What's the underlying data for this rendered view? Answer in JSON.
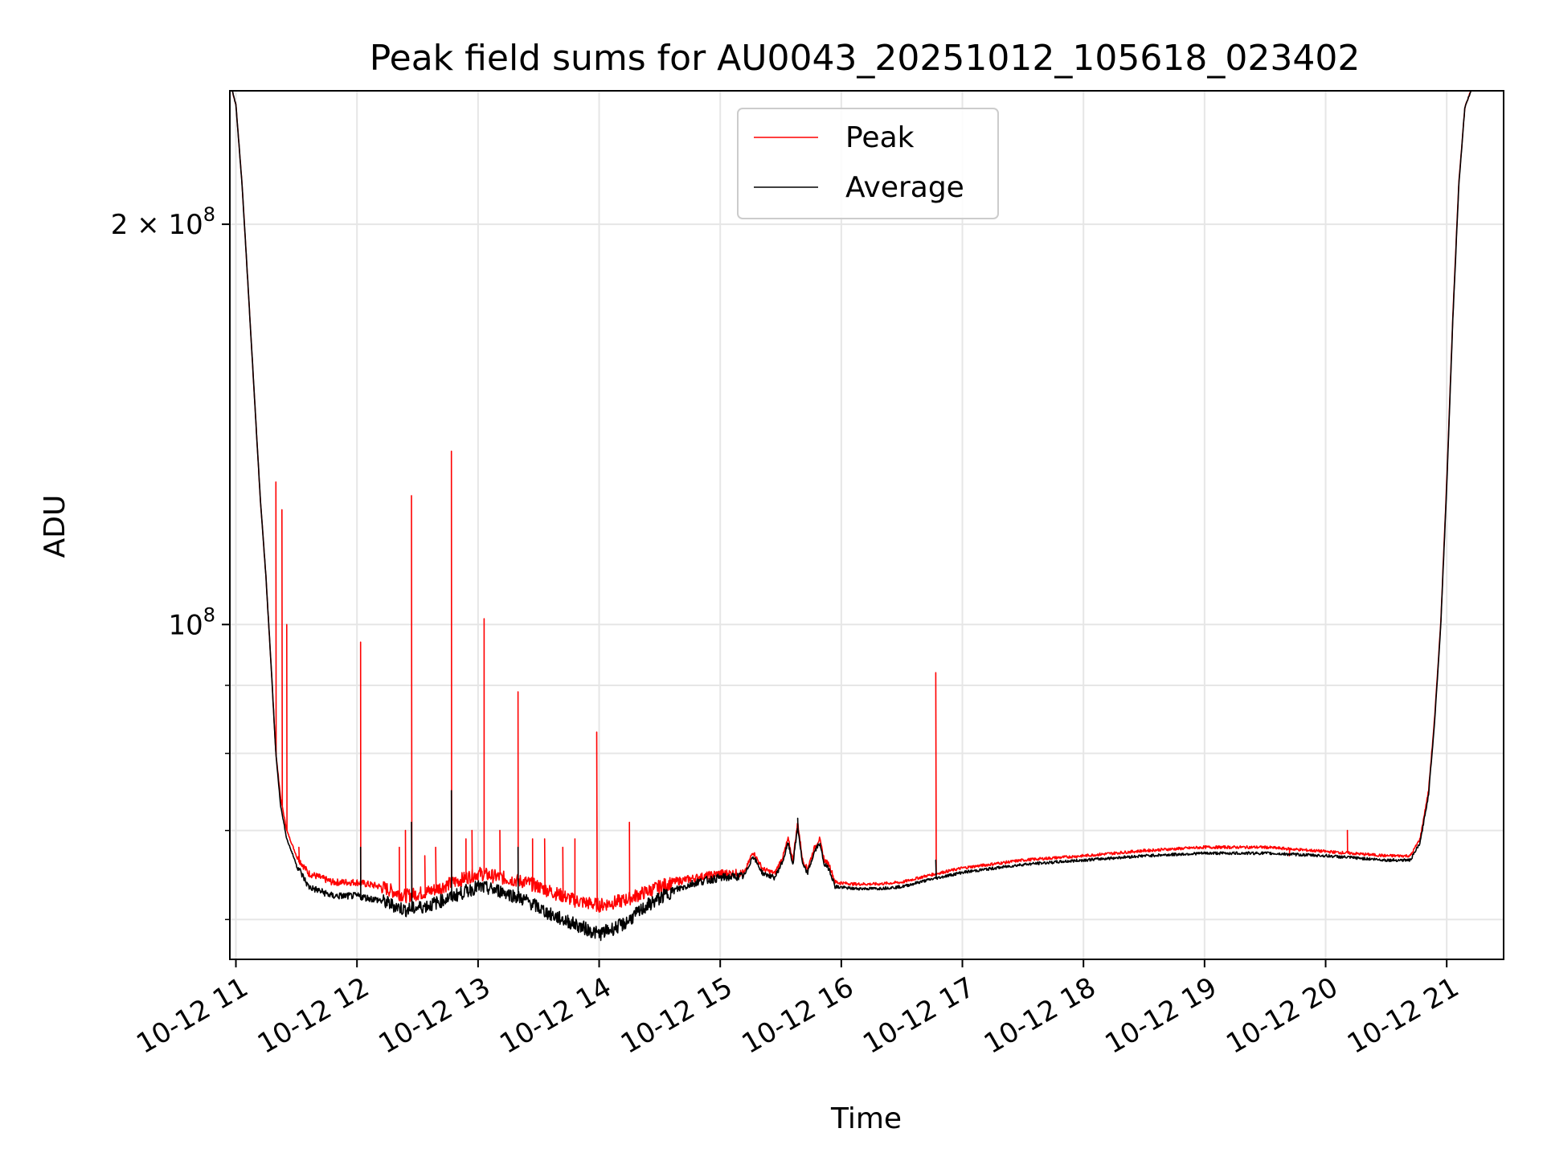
{
  "chart_data": {
    "type": "line",
    "title": "Peak field sums for AU0043_20251012_105618_023402",
    "xlabel": "Time",
    "ylabel": "ADU",
    "yscale": "log",
    "ylim": [
      56000000,
      252000000
    ],
    "xlim_hours": [
      10.95,
      21.47
    ],
    "grid": true,
    "legend_loc": "upper center",
    "x_ticks": [
      {
        "hour": 11,
        "label": "10-12 11"
      },
      {
        "hour": 12,
        "label": "10-12 12"
      },
      {
        "hour": 13,
        "label": "10-12 13"
      },
      {
        "hour": 14,
        "label": "10-12 14"
      },
      {
        "hour": 15,
        "label": "10-12 15"
      },
      {
        "hour": 16,
        "label": "10-12 16"
      },
      {
        "hour": 17,
        "label": "10-12 17"
      },
      {
        "hour": 18,
        "label": "10-12 18"
      },
      {
        "hour": 19,
        "label": "10-12 19"
      },
      {
        "hour": 20,
        "label": "10-12 20"
      },
      {
        "hour": 21,
        "label": "10-12 21"
      }
    ],
    "y_major_ticks": [
      {
        "value": 100000000,
        "mant": "10",
        "exp": "8"
      },
      {
        "value": 200000000,
        "mant": "2 × 10",
        "exp": "8"
      }
    ],
    "y_minor_ticks": [
      60000000,
      70000000,
      80000000,
      90000000
    ],
    "series": [
      {
        "name": "Peak",
        "color": "#ff0000",
        "points": [
          [
            10.97,
            252000000
          ],
          [
            11.0,
            246000000
          ],
          [
            11.05,
            215000000
          ],
          [
            11.1,
            180000000
          ],
          [
            11.15,
            150000000
          ],
          [
            11.2,
            125000000
          ],
          [
            11.25,
            108000000
          ],
          [
            11.3,
            90000000
          ],
          [
            11.33,
            80000000
          ],
          [
            11.37,
            74000000
          ],
          [
            11.42,
            70000000
          ],
          [
            11.5,
            67000000
          ],
          [
            11.6,
            65000000
          ],
          [
            11.8,
            64000000
          ],
          [
            12.0,
            64000000
          ],
          [
            12.2,
            63500000
          ],
          [
            12.4,
            62500000
          ],
          [
            12.6,
            63000000
          ],
          [
            12.8,
            64000000
          ],
          [
            13.0,
            65000000
          ],
          [
            13.2,
            64500000
          ],
          [
            13.4,
            64000000
          ],
          [
            13.6,
            63000000
          ],
          [
            13.8,
            62000000
          ],
          [
            14.0,
            61500000
          ],
          [
            14.2,
            62000000
          ],
          [
            14.4,
            63000000
          ],
          [
            14.6,
            64000000
          ],
          [
            14.8,
            64500000
          ],
          [
            15.0,
            65000000
          ],
          [
            15.2,
            65000000
          ],
          [
            15.27,
            67500000
          ],
          [
            15.35,
            65500000
          ],
          [
            15.45,
            65000000
          ],
          [
            15.52,
            67000000
          ],
          [
            15.56,
            69000000
          ],
          [
            15.6,
            66500000
          ],
          [
            15.64,
            71000000
          ],
          [
            15.68,
            66500000
          ],
          [
            15.72,
            65500000
          ],
          [
            15.78,
            68000000
          ],
          [
            15.82,
            69000000
          ],
          [
            15.86,
            66500000
          ],
          [
            15.9,
            66000000
          ],
          [
            15.95,
            64000000
          ],
          [
            16.1,
            63800000
          ],
          [
            16.3,
            63800000
          ],
          [
            16.5,
            64000000
          ],
          [
            16.7,
            64700000
          ],
          [
            17.0,
            65600000
          ],
          [
            17.5,
            66500000
          ],
          [
            18.0,
            67000000
          ],
          [
            18.5,
            67600000
          ],
          [
            19.0,
            68000000
          ],
          [
            19.5,
            68000000
          ],
          [
            20.0,
            67500000
          ],
          [
            20.5,
            67000000
          ],
          [
            20.7,
            67000000
          ],
          [
            20.78,
            69000000
          ],
          [
            20.85,
            75000000
          ],
          [
            20.9,
            85000000
          ],
          [
            20.95,
            100000000
          ],
          [
            21.0,
            128000000
          ],
          [
            21.05,
            170000000
          ],
          [
            21.1,
            215000000
          ],
          [
            21.15,
            245000000
          ],
          [
            21.2,
            252000000
          ]
        ],
        "spikes": [
          [
            11.33,
            128000000
          ],
          [
            11.38,
            122000000
          ],
          [
            11.42,
            100000000
          ],
          [
            11.52,
            68000000
          ],
          [
            12.03,
            97000000
          ],
          [
            12.35,
            68000000
          ],
          [
            12.4,
            70000000
          ],
          [
            12.45,
            125000000
          ],
          [
            12.56,
            67000000
          ],
          [
            12.65,
            68000000
          ],
          [
            12.78,
            135000000
          ],
          [
            12.9,
            69000000
          ],
          [
            12.95,
            70000000
          ],
          [
            13.05,
            101000000
          ],
          [
            13.18,
            70000000
          ],
          [
            13.33,
            89000000
          ],
          [
            13.45,
            69000000
          ],
          [
            13.55,
            69000000
          ],
          [
            13.7,
            68000000
          ],
          [
            13.8,
            69000000
          ],
          [
            13.98,
            83000000
          ],
          [
            14.25,
            71000000
          ],
          [
            16.78,
            92000000
          ],
          [
            18.55,
            67500000
          ],
          [
            19.7,
            67000000
          ],
          [
            20.18,
            70000000
          ]
        ]
      },
      {
        "name": "Average",
        "color": "#000000",
        "points": [
          [
            10.97,
            252000000
          ],
          [
            11.0,
            246000000
          ],
          [
            11.05,
            215000000
          ],
          [
            11.1,
            180000000
          ],
          [
            11.15,
            150000000
          ],
          [
            11.2,
            125000000
          ],
          [
            11.25,
            108000000
          ],
          [
            11.3,
            90000000
          ],
          [
            11.33,
            80000000
          ],
          [
            11.37,
            73000000
          ],
          [
            11.42,
            69000000
          ],
          [
            11.5,
            66000000
          ],
          [
            11.6,
            63500000
          ],
          [
            11.8,
            62500000
          ],
          [
            12.0,
            62500000
          ],
          [
            12.2,
            62000000
          ],
          [
            12.4,
            61000000
          ],
          [
            12.6,
            61500000
          ],
          [
            12.8,
            62500000
          ],
          [
            13.0,
            63500000
          ],
          [
            13.2,
            63000000
          ],
          [
            13.4,
            62000000
          ],
          [
            13.6,
            60500000
          ],
          [
            13.8,
            59500000
          ],
          [
            14.0,
            58500000
          ],
          [
            14.2,
            59500000
          ],
          [
            14.4,
            61500000
          ],
          [
            14.6,
            63000000
          ],
          [
            14.8,
            64000000
          ],
          [
            15.0,
            64500000
          ],
          [
            15.2,
            64700000
          ],
          [
            15.27,
            67000000
          ],
          [
            15.35,
            65000000
          ],
          [
            15.45,
            64500000
          ],
          [
            15.52,
            66500000
          ],
          [
            15.56,
            68500000
          ],
          [
            15.6,
            66000000
          ],
          [
            15.64,
            70500000
          ],
          [
            15.68,
            66000000
          ],
          [
            15.72,
            65000000
          ],
          [
            15.78,
            67500000
          ],
          [
            15.82,
            68500000
          ],
          [
            15.86,
            66000000
          ],
          [
            15.9,
            65500000
          ],
          [
            15.95,
            63500000
          ],
          [
            16.1,
            63300000
          ],
          [
            16.3,
            63300000
          ],
          [
            16.5,
            63500000
          ],
          [
            16.7,
            64200000
          ],
          [
            17.0,
            65100000
          ],
          [
            17.5,
            66000000
          ],
          [
            18.0,
            66500000
          ],
          [
            18.5,
            67000000
          ],
          [
            19.0,
            67300000
          ],
          [
            19.5,
            67300000
          ],
          [
            20.0,
            67000000
          ],
          [
            20.5,
            66500000
          ],
          [
            20.7,
            66500000
          ],
          [
            20.78,
            68500000
          ],
          [
            20.85,
            74500000
          ],
          [
            20.9,
            84500000
          ],
          [
            20.95,
            99500000
          ],
          [
            21.0,
            127000000
          ],
          [
            21.05,
            169000000
          ],
          [
            21.1,
            214000000
          ],
          [
            21.15,
            245000000
          ],
          [
            21.2,
            252000000
          ]
        ],
        "spikes": [
          [
            12.03,
            68000000
          ],
          [
            12.45,
            71000000
          ],
          [
            12.78,
            75000000
          ],
          [
            13.33,
            68000000
          ],
          [
            15.64,
            71500000
          ],
          [
            16.78,
            66500000
          ]
        ]
      }
    ]
  }
}
